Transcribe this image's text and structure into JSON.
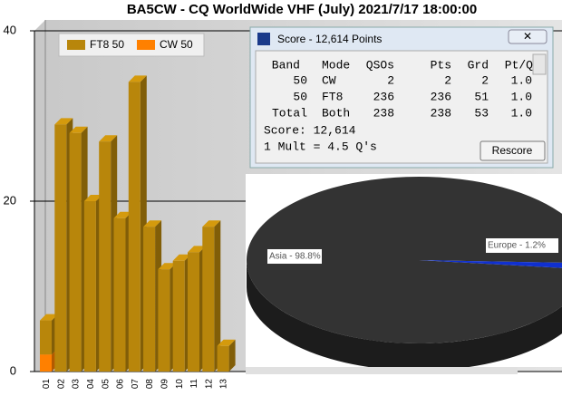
{
  "chart_data": [
    {
      "type": "bar",
      "title": "BA5CW - CQ WorldWide VHF (July) 2021/7/17 18:00:00",
      "categories": [
        "01",
        "02",
        "03",
        "04",
        "05",
        "06",
        "07",
        "08",
        "09",
        "10",
        "11",
        "12",
        "13"
      ],
      "series": [
        {
          "name": "CW 50",
          "color": "#ff8000",
          "values": [
            2,
            0,
            0,
            0,
            0,
            0,
            0,
            0,
            0,
            0,
            0,
            0,
            0
          ]
        },
        {
          "name": "FT8 50",
          "color": "#b8860b",
          "values": [
            4,
            29,
            28,
            20,
            27,
            18,
            34,
            17,
            12,
            13,
            14,
            17,
            3
          ]
        }
      ],
      "stacked": true,
      "ylim": [
        0,
        40
      ],
      "yticks": [
        0,
        20,
        40
      ],
      "grid": true
    },
    {
      "type": "pie",
      "categories": [
        "Asia",
        "Europe"
      ],
      "values": [
        98.8,
        1.2
      ],
      "value_labels": [
        "Asia - 98.8%",
        "Europe - 1.2%"
      ],
      "colors": [
        "#333333",
        "#1030d0"
      ]
    }
  ],
  "score_window": {
    "title": "Score - 12,614 Points",
    "columns": [
      "Band",
      "Mode",
      "QSOs",
      "Pts",
      "Grd",
      "Pt/Q"
    ],
    "rows": [
      [
        "50",
        "CW",
        "2",
        "2",
        "2",
        "1.0"
      ],
      [
        "50",
        "FT8",
        "236",
        "236",
        "51",
        "1.0"
      ],
      [
        "Total",
        "Both",
        "238",
        "238",
        "53",
        "1.0"
      ]
    ],
    "score": "Score: 12,614",
    "mult": "1 Mult = 4.5 Q's",
    "button": "Rescore"
  }
}
